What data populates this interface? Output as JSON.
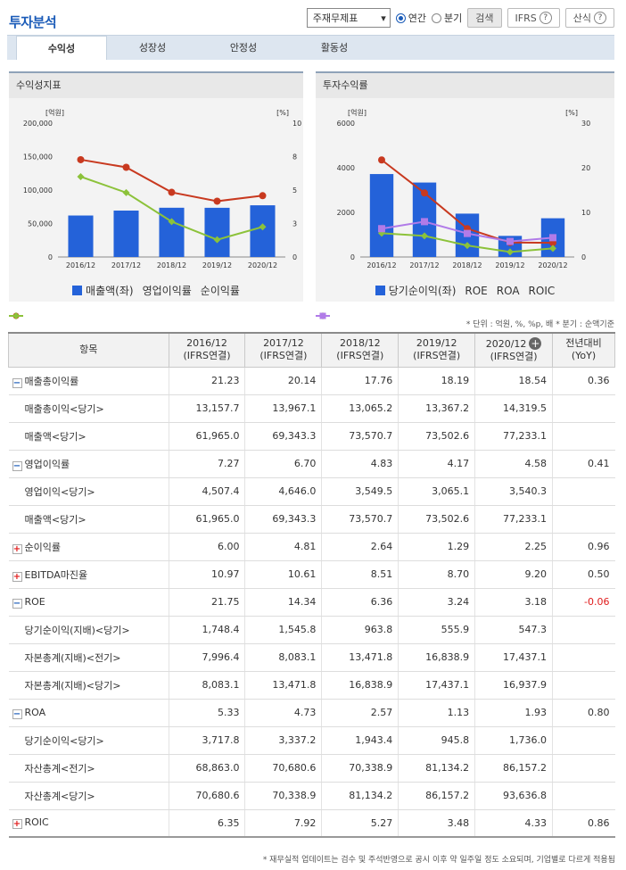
{
  "page_title": "투자분석",
  "toolbar": {
    "select_value": "주재무제표",
    "radio_annual": "연간",
    "radio_quarter": "분기",
    "search_label": "검색",
    "ifrs_label": "IFRS",
    "formula_label": "산식",
    "help": "?"
  },
  "tabs": [
    "수익성",
    "성장성",
    "안정성",
    "활동성"
  ],
  "left_chart": {
    "panel_title": "수익성지표",
    "left_unit": "[억원]",
    "right_unit": "[%]",
    "legend": [
      "매출액(좌)",
      "영업이익률",
      "순이익률"
    ]
  },
  "right_chart": {
    "panel_title": "투자수익률",
    "left_unit": "[억원]",
    "right_unit": "[%]",
    "legend": [
      "당기순이익(좌)",
      "ROE",
      "ROA",
      "ROIC"
    ]
  },
  "colors": {
    "bar": "#2462d9",
    "red": "#c8391f",
    "green": "#8cc23a",
    "purple": "#b17be8",
    "accent": "#1a5bb8"
  },
  "chart_data": [
    {
      "type": "bar",
      "title": "수익성지표",
      "categories": [
        "2016/12",
        "2017/12",
        "2018/12",
        "2019/12",
        "2020/12"
      ],
      "ylim": [
        0,
        200000
      ],
      "yticks": [
        "0",
        "50,000",
        "100,000",
        "150,000",
        "200,000"
      ],
      "y2lim": [
        0,
        10
      ],
      "y2ticks": [
        "0",
        "3",
        "5",
        "8",
        "10"
      ],
      "series": [
        {
          "name": "매출액(좌)",
          "type": "bar",
          "axis": "left",
          "values": [
            61965.0,
            69343.3,
            73570.7,
            73502.6,
            77233.1
          ]
        },
        {
          "name": "영업이익률",
          "type": "line",
          "axis": "right",
          "values": [
            7.27,
            6.7,
            4.83,
            4.17,
            4.58
          ]
        },
        {
          "name": "순이익률",
          "type": "line",
          "axis": "right",
          "values": [
            6.0,
            4.81,
            2.64,
            1.29,
            2.25
          ]
        }
      ]
    },
    {
      "type": "bar",
      "title": "투자수익률",
      "categories": [
        "2016/12",
        "2017/12",
        "2018/12",
        "2019/12",
        "2020/12"
      ],
      "ylim": [
        0,
        6000
      ],
      "yticks": [
        "0",
        "2000",
        "4000",
        "6000"
      ],
      "y2lim": [
        0,
        30
      ],
      "y2ticks": [
        "0",
        "10",
        "20",
        "30"
      ],
      "series": [
        {
          "name": "당기순이익(좌)",
          "type": "bar",
          "axis": "left",
          "values": [
            3717.8,
            3337.2,
            1943.4,
            945.8,
            1736.0
          ]
        },
        {
          "name": "ROE",
          "type": "line",
          "axis": "right",
          "values": [
            21.75,
            14.34,
            6.36,
            3.24,
            3.18
          ]
        },
        {
          "name": "ROA",
          "type": "line",
          "axis": "right",
          "values": [
            5.33,
            4.73,
            2.57,
            1.13,
            1.93
          ]
        },
        {
          "name": "ROIC",
          "type": "line",
          "axis": "right",
          "values": [
            6.35,
            7.92,
            5.27,
            3.48,
            4.33
          ]
        }
      ]
    }
  ],
  "unit_note": "* 단위 : 억원, %, %p, 배   * 분기 : 순액기준",
  "table": {
    "headers": [
      "항목",
      "2016/12\n(IFRS연결)",
      "2017/12\n(IFRS연결)",
      "2018/12\n(IFRS연결)",
      "2019/12\n(IFRS연결)",
      "2020/12\n(IFRS연결)",
      "전년대비\n(YoY)"
    ],
    "rows": [
      {
        "label": "매출총이익률",
        "icon": "minus",
        "values": [
          "21.23",
          "20.14",
          "17.76",
          "18.19",
          "18.54",
          "0.36"
        ]
      },
      {
        "label": "매출총이익<당기>",
        "sub": true,
        "values": [
          "13,157.7",
          "13,967.1",
          "13,065.2",
          "13,367.2",
          "14,319.5",
          ""
        ]
      },
      {
        "label": "매출액<당기>",
        "sub": true,
        "values": [
          "61,965.0",
          "69,343.3",
          "73,570.7",
          "73,502.6",
          "77,233.1",
          ""
        ]
      },
      {
        "label": "영업이익률",
        "icon": "minus",
        "values": [
          "7.27",
          "6.70",
          "4.83",
          "4.17",
          "4.58",
          "0.41"
        ]
      },
      {
        "label": "영업이익<당기>",
        "sub": true,
        "values": [
          "4,507.4",
          "4,646.0",
          "3,549.5",
          "3,065.1",
          "3,540.3",
          ""
        ]
      },
      {
        "label": "매출액<당기>",
        "sub": true,
        "values": [
          "61,965.0",
          "69,343.3",
          "73,570.7",
          "73,502.6",
          "77,233.1",
          ""
        ]
      },
      {
        "label": "순이익률",
        "icon": "plus",
        "values": [
          "6.00",
          "4.81",
          "2.64",
          "1.29",
          "2.25",
          "0.96"
        ]
      },
      {
        "label": "EBITDA마진율",
        "icon": "plus",
        "values": [
          "10.97",
          "10.61",
          "8.51",
          "8.70",
          "9.20",
          "0.50"
        ]
      },
      {
        "label": "ROE",
        "icon": "minus",
        "values": [
          "21.75",
          "14.34",
          "6.36",
          "3.24",
          "3.18",
          "-0.06"
        ]
      },
      {
        "label": "당기순이익(지배)<당기>",
        "sub": true,
        "values": [
          "1,748.4",
          "1,545.8",
          "963.8",
          "555.9",
          "547.3",
          ""
        ]
      },
      {
        "label": "자본총계(지배)<전기>",
        "sub": true,
        "values": [
          "7,996.4",
          "8,083.1",
          "13,471.8",
          "16,838.9",
          "17,437.1",
          ""
        ]
      },
      {
        "label": "자본총계(지배)<당기>",
        "sub": true,
        "values": [
          "8,083.1",
          "13,471.8",
          "16,838.9",
          "17,437.1",
          "16,937.9",
          ""
        ]
      },
      {
        "label": "ROA",
        "icon": "minus",
        "values": [
          "5.33",
          "4.73",
          "2.57",
          "1.13",
          "1.93",
          "0.80"
        ]
      },
      {
        "label": "당기순이익<당기>",
        "sub": true,
        "values": [
          "3,717.8",
          "3,337.2",
          "1,943.4",
          "945.8",
          "1,736.0",
          ""
        ]
      },
      {
        "label": "자산총계<전기>",
        "sub": true,
        "values": [
          "68,863.0",
          "70,680.6",
          "70,338.9",
          "81,134.2",
          "86,157.2",
          ""
        ]
      },
      {
        "label": "자산총계<당기>",
        "sub": true,
        "values": [
          "70,680.6",
          "70,338.9",
          "81,134.2",
          "86,157.2",
          "93,636.8",
          ""
        ]
      },
      {
        "label": "ROIC",
        "icon": "plus",
        "values": [
          "6.35",
          "7.92",
          "5.27",
          "3.48",
          "4.33",
          "0.86"
        ]
      }
    ]
  },
  "footer_note": "* 재무실적 업데이트는 검수 및 주석반영으로 공시 이후 약 일주일 정도 소요되며, 기업별로 다르게 적용됨"
}
